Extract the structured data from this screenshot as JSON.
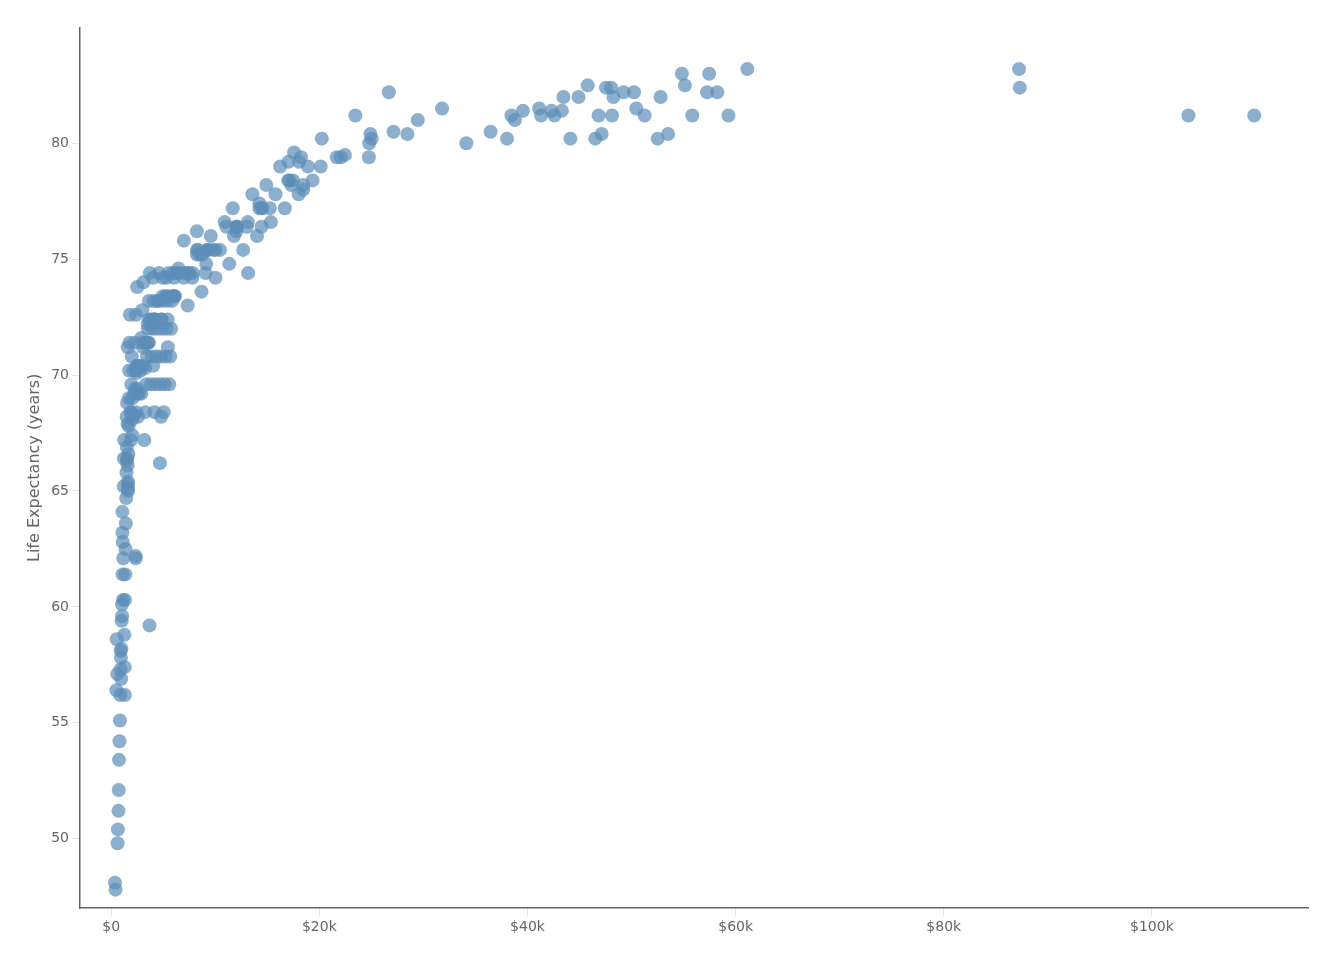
{
  "chart_data": {
    "type": "scatter",
    "ylabel": "Life Expectancy (years)",
    "color": "#5b8db8",
    "background_color": "#ffffff",
    "grid": false,
    "xlim": [
      -3000,
      115000
    ],
    "ylim": [
      47,
      85
    ],
    "xticks": [
      {
        "value": 0,
        "label": "$0"
      },
      {
        "value": 20000,
        "label": "$20k"
      },
      {
        "value": 40000,
        "label": "$40k"
      },
      {
        "value": 60000,
        "label": "$60k"
      },
      {
        "value": 80000,
        "label": "$80k"
      },
      {
        "value": 100000,
        "label": "$100k"
      }
    ],
    "yticks": [
      50,
      55,
      60,
      65,
      70,
      75,
      80
    ],
    "x": [
      365,
      412,
      500,
      531,
      587,
      612,
      643,
      698,
      720,
      743,
      798,
      834,
      867,
      890,
      912,
      934,
      956,
      978,
      1005,
      1034,
      1045,
      1067,
      1073,
      1089,
      1105,
      1128,
      1163,
      1198,
      1218,
      1245,
      1267,
      1289,
      1312,
      1327,
      1356,
      1378,
      1402,
      1435,
      1467,
      1482,
      1498,
      1516,
      1523,
      1524,
      1567,
      1573,
      1589,
      1612,
      1613,
      1614,
      1619,
      1645,
      1678,
      1698,
      1723,
      1756,
      1789,
      1862,
      1893,
      1912,
      1934,
      1967,
      2028,
      2034,
      2052,
      2063,
      2123,
      2124,
      2207,
      2245,
      2285,
      2345,
      2345,
      2367,
      2388,
      2403,
      2438,
      2462,
      2462,
      2489,
      2512,
      2516,
      2561,
      2567,
      2678,
      2789,
      2812,
      2890,
      2901,
      2978,
      3012,
      3032,
      3065,
      3089,
      3178,
      3234,
      3256,
      3267,
      3356,
      3445,
      3462,
      3504,
      3512,
      3534,
      3607,
      3623,
      3632,
      3678,
      3712,
      3801,
      3812,
      3834,
      3890,
      3978,
      4022,
      4034,
      4037,
      4042,
      4067,
      4156,
      4224,
      4238,
      4245,
      4334,
      4423,
      4438,
      4512,
      4601,
      4678,
      4690,
      4778,
      4789,
      4832,
      4834,
      4867,
      4938,
      4938,
      4956,
      5045,
      5134,
      5223,
      5238,
      5302,
      5312,
      5401,
      5412,
      5415,
      5445,
      5490,
      5578,
      5667,
      5756,
      5834,
      5845,
      5934,
      6023,
      6034,
      6036,
      6124,
      6296,
      6456,
      6512,
      6978,
      6980,
      7028,
      7308,
      7345,
      7512,
      7789,
      7832,
      8234,
      8234,
      8232,
      8335,
      8456,
      8678,
      8723,
      9068,
      9123,
      9236,
      9238,
      9308,
      9567,
      9834,
      10012,
      10022,
      10456,
      10901,
      11068,
      11345,
      11678,
      11789,
      12034,
      12038,
      12068,
      12082,
      12678,
      13034,
      13123,
      13152,
      13567,
      14012,
      14234,
      14238,
      14440,
      14456,
      14516,
      14901,
      15234,
      15345,
      15789,
      16234,
      16678,
      17012,
      17034,
      17123,
      17308,
      17464,
      17567,
      18012,
      18056,
      18234,
      18456,
      18456,
      18901,
      19345,
      20123,
      20234,
      21678,
      22068,
      22456,
      23456,
      24756,
      24789,
      24901,
      25034,
      26678,
      27123,
      28462,
      29456,
      31789,
      34123,
      36456,
      38034,
      38457,
      38789,
      39562,
      41123,
      41308,
      42308,
      42588,
      43308,
      43456,
      44124,
      44901,
      45789,
      46512,
      46834,
      47124,
      47541,
      48038,
      48123,
      48256,
      49234,
      50234,
      50456,
      51256,
      52512,
      52789,
      53512,
      54834,
      55123,
      55834,
      57256,
      57456,
      58234,
      59308,
      61124,
      87308,
      87234,
      103512,
      109834
    ],
    "values": [
      48.1,
      47.8,
      56.4,
      58.6,
      57.1,
      49.8,
      50.4,
      51.2,
      52.1,
      53.4,
      54.2,
      55.1,
      56.2,
      57.3,
      58.1,
      57.8,
      56.9,
      58.2,
      59.4,
      60.1,
      59.6,
      64.1,
      63.2,
      61.4,
      62.8,
      60.3,
      62.1,
      65.2,
      66.4,
      67.2,
      58.8,
      57.4,
      56.2,
      60.3,
      61.4,
      62.5,
      63.6,
      64.7,
      65.8,
      68.2,
      66.9,
      66.3,
      68.8,
      66.4,
      67.9,
      66.1,
      71.2,
      65.4,
      65.1,
      65.0,
      65.3,
      66.6,
      67.8,
      69.0,
      70.2,
      71.4,
      72.6,
      68.4,
      67.2,
      68.4,
      69.6,
      70.8,
      67.4,
      69.0,
      68.2,
      68.1,
      70.2,
      68.3,
      69.2,
      71.4,
      69.4,
      62.2,
      62.1,
      72.6,
      70.2,
      68.4,
      70.3,
      70.4,
      70.1,
      73.8,
      69.2,
      70.4,
      69.4,
      68.2,
      69.2,
      70.4,
      70.2,
      71.6,
      69.2,
      72.8,
      70.4,
      71.4,
      71.2,
      74.0,
      67.2,
      71.4,
      70.3,
      68.4,
      69.6,
      70.8,
      71.4,
      72.2,
      71.4,
      72.0,
      72.4,
      73.2,
      71.4,
      59.2,
      74.4,
      69.6,
      72.4,
      72.2,
      70.8,
      72.0,
      74.2,
      70.4,
      72.4,
      72.4,
      73.2,
      68.4,
      72.4,
      72.4,
      69.6,
      70.8,
      72.0,
      73.2,
      73.2,
      74.4,
      66.2,
      69.6,
      70.8,
      68.2,
      72.4,
      72.4,
      72.0,
      74.2,
      73.4,
      73.2,
      68.4,
      69.6,
      70.8,
      73.4,
      74.2,
      72.0,
      73.2,
      73.4,
      72.4,
      71.2,
      74.4,
      69.6,
      70.8,
      72.0,
      73.4,
      73.2,
      74.4,
      73.4,
      74.2,
      73.4,
      73.4,
      74.4,
      74.6,
      74.4,
      75.8,
      74.2,
      74.4,
      74.4,
      73.0,
      74.4,
      74.2,
      74.4,
      75.4,
      75.2,
      76.2,
      75.4,
      75.2,
      73.6,
      75.2,
      74.4,
      74.8,
      75.4,
      75.4,
      75.4,
      76.0,
      75.4,
      74.2,
      75.4,
      75.4,
      76.6,
      76.4,
      74.8,
      77.2,
      76.0,
      76.2,
      76.4,
      76.4,
      76.4,
      75.4,
      76.4,
      76.6,
      74.4,
      77.8,
      76.0,
      77.2,
      77.4,
      76.4,
      77.2,
      77.2,
      78.2,
      77.2,
      76.6,
      77.8,
      79.0,
      77.2,
      78.4,
      79.2,
      78.4,
      78.2,
      78.4,
      79.6,
      77.8,
      79.2,
      79.4,
      78.2,
      78.0,
      79.0,
      78.4,
      79.0,
      80.2,
      79.4,
      79.4,
      79.5,
      81.2,
      79.4,
      80.0,
      80.4,
      80.2,
      82.2,
      80.5,
      80.4,
      81.0,
      81.5,
      80.0,
      80.5,
      80.2,
      81.2,
      81.0,
      81.4,
      81.5,
      81.2,
      81.4,
      81.2,
      81.4,
      82.0,
      80.2,
      82.0,
      82.5,
      80.2,
      81.2,
      80.4,
      82.4,
      82.4,
      81.2,
      82.0,
      82.2,
      82.2,
      81.5,
      81.2,
      80.2,
      82.0,
      80.4,
      83.0,
      82.5,
      81.2,
      82.2,
      83.0,
      82.2,
      81.2,
      83.2,
      82.4,
      83.2,
      81.2,
      81.2
    ]
  }
}
